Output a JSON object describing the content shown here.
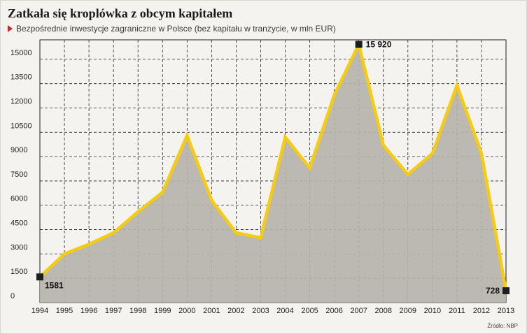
{
  "header": {
    "title": "Zatkała się kroplówka z obcym kapitałem",
    "subtitle": "Bezpośrednie inwestycje zagraniczne w Polsce (bez kapitału w tranzycie, w mln EUR)"
  },
  "footer": {
    "source": "Źródło: NBP"
  },
  "colors": {
    "line": "#f5cc12",
    "area": "#b6b3ac",
    "marker": "#1e1e1e",
    "background": "#f4f3ef",
    "accent": "#e02020"
  },
  "chart_data": {
    "type": "area",
    "title": "Zatkała się kroplówka z obcym kapitałem",
    "subtitle": "Bezpośrednie inwestycje zagraniczne w Polsce (bez kapitału w tranzycie, w mln EUR)",
    "x": [
      "1994",
      "1995",
      "1996",
      "1997",
      "1998",
      "1999",
      "2000",
      "2001",
      "2002",
      "2003",
      "2004",
      "2005",
      "2006",
      "2007",
      "2008",
      "2009",
      "2010",
      "2011",
      "2012",
      "2013"
    ],
    "series": [
      {
        "values": [
          1581,
          3000,
          3600,
          4300,
          5600,
          6800,
          10300,
          6300,
          4300,
          4000,
          10200,
          8300,
          12800,
          15920,
          9700,
          7900,
          9200,
          13400,
          9200,
          728
        ]
      }
    ],
    "yticks": [
      0,
      1500,
      3000,
      4500,
      6000,
      7500,
      9000,
      10500,
      12000,
      13500,
      15000
    ],
    "ylim": [
      0,
      16200
    ],
    "grid": true,
    "annotations": [
      {
        "x": "1994",
        "label": "1581"
      },
      {
        "x": "2007",
        "label": "15 920"
      },
      {
        "x": "2013",
        "label": "728"
      }
    ]
  }
}
